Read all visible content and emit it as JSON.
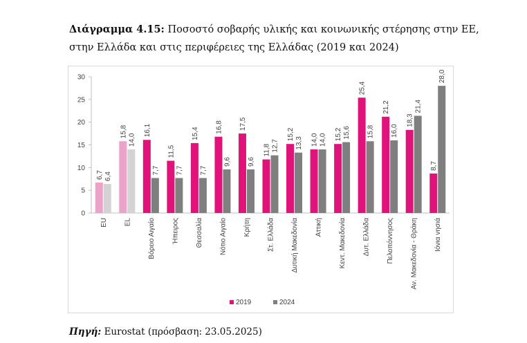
{
  "caption": {
    "lead": "Διάγραμμα 4.15:",
    "line1": "Ποσοστό σοβαρής υλικής και κοινωνικής στέρησης στην ΕΕ,",
    "line2": "στην Ελλάδα και στις περιφέρειες της Ελλάδας (2019 και 2024)"
  },
  "source": {
    "lead": "Πηγή:",
    "text": "Eurostat (πρόσβαση: 23.05.2025)"
  },
  "chart_data": {
    "type": "bar",
    "categories": [
      "EU",
      "EL",
      "Βόρειο Αιγαίο",
      "Ήπειρος",
      "Θεσσαλία",
      "Νότιο Αιγαίο",
      "Κρήτη",
      "Στ. Ελλάδα",
      "Δυτική Μακεδονία",
      "Αττική",
      "Κεντ. Μακεδονία",
      "Δυτ. Ελλάδα",
      "Πελοπόννησος",
      "Αν. Μακεδονία - Θράκη",
      "Ιόνια νησιά"
    ],
    "series": [
      {
        "name": "2019",
        "values": [
          6.7,
          15.8,
          16.1,
          11.5,
          15.4,
          16.8,
          17.5,
          11.8,
          15.2,
          14.0,
          15.2,
          25.4,
          21.2,
          18.3,
          8.7
        ],
        "labels": [
          "6,7",
          "15,8",
          "16,1",
          "11,5",
          "15,4",
          "16,8",
          "17,5",
          "11,8",
          "15,2",
          "14,0",
          "15,2",
          "25,4",
          "21,2",
          "18,3",
          "8,7"
        ],
        "color": "#E0137A",
        "highlight_color": "#EBA3C8"
      },
      {
        "name": "2024",
        "values": [
          6.4,
          14.0,
          7.7,
          7.7,
          7.7,
          9.6,
          9.6,
          12.7,
          13.3,
          14.0,
          15.6,
          15.8,
          16.0,
          21.4,
          28.0
        ],
        "labels": [
          "6,4",
          "14,0",
          "7,7",
          "7,7",
          "7,7",
          "9,6",
          "9,6",
          "12,7",
          "13,3",
          "14,0",
          "15,6",
          "15,8",
          "16,0",
          "21,4",
          "28,0"
        ],
        "color": "#7F7F7F",
        "highlight_color": "#D3D3D3"
      }
    ],
    "highlight_categories": [
      "EU",
      "EL"
    ],
    "yticks": [
      "0",
      "5",
      "10",
      "15",
      "20",
      "25",
      "30"
    ],
    "ylim": [
      0,
      30
    ],
    "legend_position": "bottom",
    "grid": false
  }
}
